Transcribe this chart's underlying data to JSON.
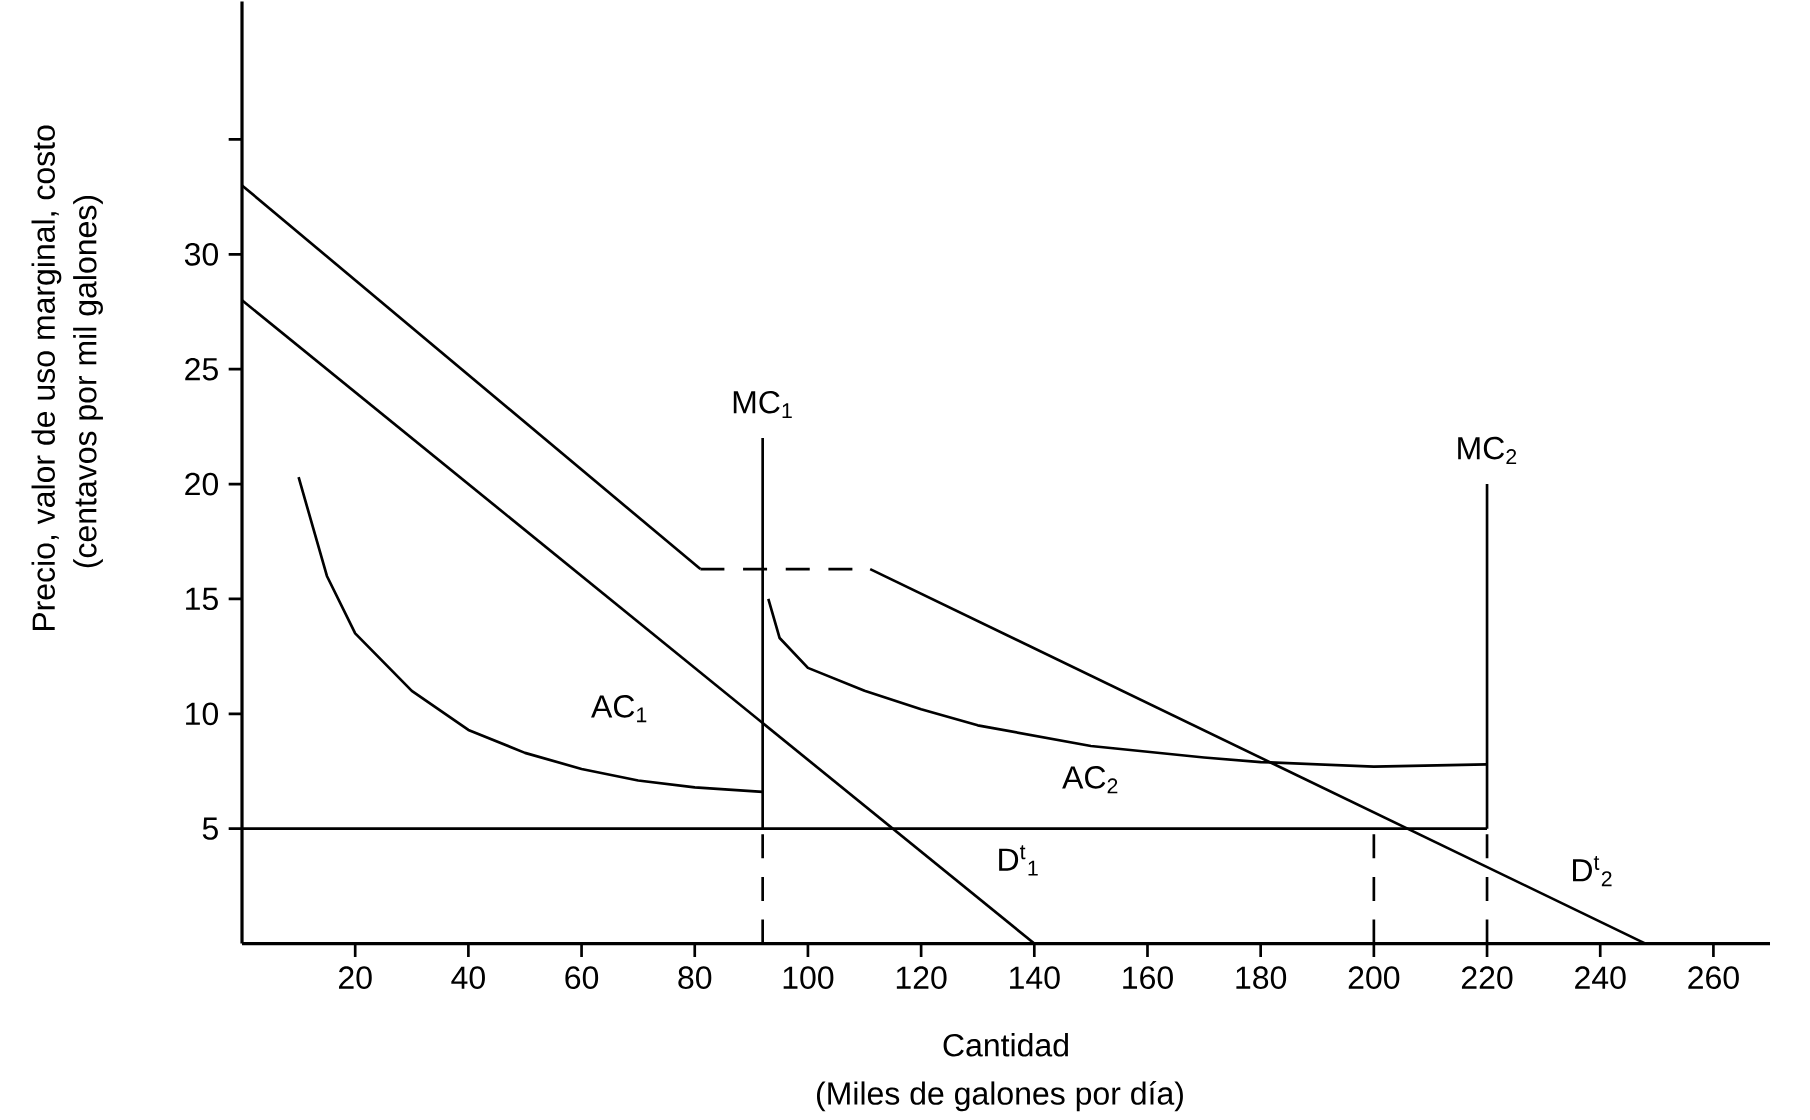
{
  "chart_data": {
    "type": "line",
    "xlabel": "Cantidad",
    "ylabel": "Precio, valor de uso marginal, costo",
    "annotations": [
      "(Miles de galones por día)",
      "(centavos por mil galones)"
    ],
    "xlim": [
      0,
      270
    ],
    "ylim": [
      0,
      41
    ],
    "xticks": [
      20,
      40,
      60,
      80,
      100,
      120,
      140,
      160,
      180,
      200,
      220,
      240,
      260
    ],
    "yticks": [
      5,
      10,
      15,
      20,
      25,
      30,
      {
        "value": 35,
        "label": null
      }
    ],
    "marker": "none",
    "series": [
      {
        "color": "#000000",
        "line_style": "solid",
        "x": [
          0,
          81
        ],
        "values": [
          33,
          16.3
        ]
      },
      {
        "color": "#000000",
        "line_style": "dashed",
        "x": [
          81,
          111
        ],
        "values": [
          16.3,
          16.3
        ]
      },
      {
        "name": "D$^{t}$$_{2}$",
        "color": "#000000",
        "line_style": "solid",
        "x": [
          111,
          248
        ],
        "values": [
          16.3,
          0
        ]
      },
      {
        "name": "D$^{t}$$_{1}$",
        "color": "#000000",
        "line_style": "solid",
        "x": [
          0,
          140
        ],
        "values": [
          28,
          0
        ]
      },
      {
        "name": "AC$_{1}$",
        "color": "#000000",
        "line_style": "solid",
        "x": [
          10,
          15,
          20,
          30,
          40,
          50,
          60,
          70,
          80,
          92
        ],
        "values": [
          20.3,
          16,
          13.5,
          11,
          9.3,
          8.3,
          7.6,
          7.1,
          6.8,
          6.6
        ]
      },
      {
        "name": "AC$_{2}$",
        "color": "#000000",
        "line_style": "solid",
        "x": [
          93,
          95,
          100,
          110,
          120,
          130,
          150,
          170,
          180,
          200,
          220
        ],
        "values": [
          15,
          13.3,
          12,
          11,
          10.2,
          9.5,
          8.6,
          8.1,
          7.9,
          7.7,
          7.8
        ]
      },
      {
        "color": "#000000",
        "line_style": "solid",
        "x": [
          0,
          220
        ],
        "values": [
          5,
          5
        ]
      },
      {
        "name": "MC$_{1}$",
        "color": "#000000",
        "line_style": "solid",
        "x": [
          92,
          92
        ],
        "values": [
          5,
          22
        ]
      },
      {
        "color": "#000000",
        "line_style": "dashed",
        "x": [
          92,
          92
        ],
        "values": [
          0,
          5
        ]
      },
      {
        "name": "MC$_{2}$",
        "color": "#000000",
        "line_style": "solid",
        "x": [
          220,
          220
        ],
        "values": [
          5,
          20
        ]
      },
      {
        "color": "#000000",
        "line_style": "dashed",
        "x": [
          220,
          220
        ],
        "values": [
          0,
          5
        ]
      },
      {
        "color": "#000000",
        "line_style": "dashed",
        "x": [
          200,
          200
        ],
        "values": [
          0,
          5
        ]
      }
    ]
  }
}
